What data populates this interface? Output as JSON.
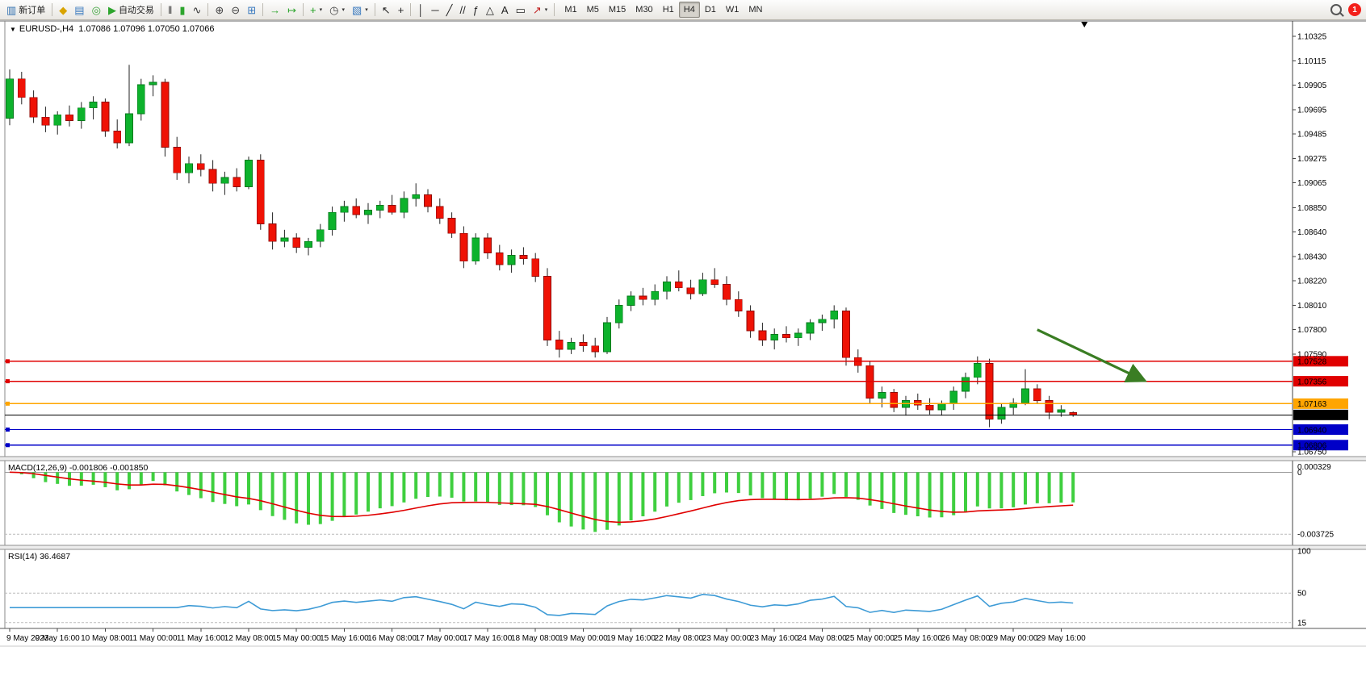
{
  "toolbar": {
    "notification_count": "1",
    "active_timeframe": "H4",
    "timeframes": [
      "M1",
      "M5",
      "M15",
      "M30",
      "H1",
      "H4",
      "D1",
      "W1",
      "MN"
    ],
    "items": [
      {
        "name": "new-order-button",
        "icon": "new-order-icon",
        "label": "新订单"
      },
      {
        "type": "sep"
      },
      {
        "name": "market-watch-button",
        "icon": "market-watch-icon"
      },
      {
        "name": "data-window-button",
        "icon": "data-window-icon"
      },
      {
        "name": "navigator-button",
        "icon": "navigator-icon"
      },
      {
        "name": "auto-trading-button",
        "icon": "play-icon",
        "label": "自动交易"
      },
      {
        "type": "sep"
      },
      {
        "name": "bar-chart-button",
        "icon": "bar-chart-icon"
      },
      {
        "name": "candlestick-chart-button",
        "icon": "candlestick-icon"
      },
      {
        "name": "line-chart-button",
        "icon": "line-chart-icon"
      },
      {
        "type": "sep"
      },
      {
        "name": "zoom-in-button",
        "icon": "zoom-in-icon"
      },
      {
        "name": "zoom-out-button",
        "icon": "zoom-out-icon"
      },
      {
        "name": "tile-windows-button",
        "icon": "tile-windows-icon"
      },
      {
        "type": "sep"
      },
      {
        "name": "auto-scroll-button",
        "icon": "auto-scroll-icon"
      },
      {
        "name": "chart-shift-button",
        "icon": "chart-shift-icon"
      },
      {
        "type": "sep"
      },
      {
        "name": "indicators-button",
        "icon": "indicators-plus-icon",
        "dropdown": true
      },
      {
        "name": "periods-button",
        "icon": "clock-icon",
        "dropdown": true
      },
      {
        "name": "templates-button",
        "icon": "template-icon",
        "dropdown": true
      },
      {
        "type": "sep"
      },
      {
        "name": "cursor-button",
        "icon": "cursor-icon"
      },
      {
        "name": "crosshair-button",
        "icon": "crosshair-icon"
      },
      {
        "type": "sep"
      },
      {
        "name": "vertical-line-button",
        "icon": "vline-icon"
      },
      {
        "name": "horizontal-line-button",
        "icon": "hline-icon"
      },
      {
        "name": "trendline-button",
        "icon": "trendline-icon"
      },
      {
        "name": "equidistant-channel-button",
        "icon": "channel-icon"
      },
      {
        "name": "fibonacci-button",
        "icon": "fibonacci-icon"
      },
      {
        "name": "shapes-button",
        "icon": "shapes-icon"
      },
      {
        "name": "text-button",
        "icon": "text-icon"
      },
      {
        "name": "text-label-button",
        "icon": "text-label-icon"
      },
      {
        "name": "arrows-button",
        "icon": "arrow-icon",
        "dropdown": true
      },
      {
        "type": "sep"
      }
    ]
  },
  "chart": {
    "header": {
      "symbol": "EURUSD-,H4",
      "ohlc": "1.07086 1.07096 1.07050 1.07066"
    }
  },
  "indicators": {
    "macd": {
      "header": "MACD(12,26,9) -0.001806 -0.001850"
    },
    "rsi": {
      "header": "RSI(14) 36.4687"
    }
  },
  "chart_data": {
    "type": "candlestick",
    "symbol": "EURUSD-",
    "timeframe": "H4",
    "start": "2023-05-09 00:00",
    "interval_hours": 4,
    "current_ohlc": {
      "open": 1.07086,
      "high": 1.07096,
      "low": 1.0705,
      "close": 1.07066
    },
    "ylim": [
      1.06735,
      1.1043
    ],
    "price_axis_ticks": [
      1.10325,
      1.10115,
      1.09905,
      1.09695,
      1.09485,
      1.09275,
      1.09065,
      1.0885,
      1.0864,
      1.0843,
      1.0822,
      1.0801,
      1.078,
      1.0759,
      1.0675
    ],
    "candles": [
      [
        1.0962,
        1.1004,
        1.0956,
        1.0996
      ],
      [
        1.0996,
        1.1002,
        1.0974,
        1.098
      ],
      [
        1.098,
        1.0986,
        1.0958,
        1.0963
      ],
      [
        1.0963,
        1.0972,
        1.095,
        1.0956
      ],
      [
        1.0956,
        1.0968,
        1.0948,
        1.0965
      ],
      [
        1.0965,
        1.0973,
        1.0955,
        1.096
      ],
      [
        1.096,
        1.0976,
        1.0953,
        1.0971
      ],
      [
        1.0971,
        1.0981,
        1.0961,
        1.0976
      ],
      [
        1.0976,
        1.0979,
        1.0946,
        1.0951
      ],
      [
        1.0951,
        1.0961,
        1.0936,
        1.0941
      ],
      [
        1.0941,
        1.1008,
        1.0938,
        1.0966
      ],
      [
        1.0966,
        1.0996,
        1.096,
        1.0991
      ],
      [
        1.0991,
        1.0999,
        1.0981,
        1.0993
      ],
      [
        1.0993,
        1.0996,
        1.0929,
        1.0937
      ],
      [
        1.0937,
        1.0946,
        1.0909,
        1.0915
      ],
      [
        1.0915,
        1.0929,
        1.0906,
        1.0923
      ],
      [
        1.0923,
        1.0931,
        1.0912,
        1.0918
      ],
      [
        1.0918,
        1.0926,
        1.0899,
        1.0906
      ],
      [
        1.0906,
        1.0916,
        1.0896,
        1.0911
      ],
      [
        1.0911,
        1.0919,
        1.0899,
        1.0903
      ],
      [
        1.0903,
        1.0929,
        1.0901,
        1.0926
      ],
      [
        1.0926,
        1.0931,
        1.0866,
        1.0871
      ],
      [
        1.0871,
        1.0881,
        1.0849,
        1.0856
      ],
      [
        1.0856,
        1.0866,
        1.0851,
        1.0859
      ],
      [
        1.0859,
        1.0863,
        1.0846,
        1.0851
      ],
      [
        1.0851,
        1.0859,
        1.0844,
        1.0856
      ],
      [
        1.0856,
        1.0871,
        1.0851,
        1.0866
      ],
      [
        1.0866,
        1.0886,
        1.0861,
        1.0881
      ],
      [
        1.0881,
        1.0891,
        1.0873,
        1.0886
      ],
      [
        1.0886,
        1.0893,
        1.0876,
        1.0879
      ],
      [
        1.0879,
        1.0889,
        1.0871,
        1.0883
      ],
      [
        1.0883,
        1.0891,
        1.0876,
        1.0887
      ],
      [
        1.0887,
        1.0896,
        1.0879,
        1.0881
      ],
      [
        1.0881,
        1.0899,
        1.0876,
        1.0893
      ],
      [
        1.0893,
        1.0906,
        1.0886,
        1.0896
      ],
      [
        1.0896,
        1.0901,
        1.0881,
        1.0886
      ],
      [
        1.0886,
        1.0893,
        1.0871,
        1.0876
      ],
      [
        1.0876,
        1.0881,
        1.0859,
        1.0863
      ],
      [
        1.0863,
        1.0869,
        1.0833,
        1.0839
      ],
      [
        1.0839,
        1.0863,
        1.0836,
        1.0859
      ],
      [
        1.0859,
        1.0863,
        1.0841,
        1.0846
      ],
      [
        1.0846,
        1.0853,
        1.0831,
        1.0836
      ],
      [
        1.0836,
        1.0849,
        1.0829,
        1.0844
      ],
      [
        1.0844,
        1.0851,
        1.0836,
        1.0841
      ],
      [
        1.0841,
        1.0846,
        1.0821,
        1.0826
      ],
      [
        1.0826,
        1.0833,
        1.0766,
        1.0771
      ],
      [
        1.0771,
        1.0779,
        1.0756,
        1.0763
      ],
      [
        1.0763,
        1.0773,
        1.0759,
        1.0769
      ],
      [
        1.0769,
        1.0776,
        1.0761,
        1.0766
      ],
      [
        1.0766,
        1.0773,
        1.0756,
        1.0761
      ],
      [
        1.0761,
        1.0791,
        1.0759,
        1.0786
      ],
      [
        1.0786,
        1.0806,
        1.0781,
        1.0801
      ],
      [
        1.0801,
        1.0813,
        1.0796,
        1.0809
      ],
      [
        1.0809,
        1.0816,
        1.0801,
        1.0806
      ],
      [
        1.0806,
        1.0819,
        1.0801,
        1.0813
      ],
      [
        1.0813,
        1.0826,
        1.0806,
        1.0821
      ],
      [
        1.0821,
        1.0831,
        1.0813,
        1.0816
      ],
      [
        1.0816,
        1.0823,
        1.0806,
        1.0811
      ],
      [
        1.0811,
        1.0829,
        1.0809,
        1.0823
      ],
      [
        1.0823,
        1.0833,
        1.0816,
        1.0819
      ],
      [
        1.0819,
        1.0826,
        1.0801,
        1.0806
      ],
      [
        1.0806,
        1.0813,
        1.0791,
        1.0796
      ],
      [
        1.0796,
        1.0801,
        1.0773,
        1.0779
      ],
      [
        1.0779,
        1.0786,
        1.0766,
        1.0771
      ],
      [
        1.0771,
        1.0781,
        1.0763,
        1.0776
      ],
      [
        1.0776,
        1.0783,
        1.0769,
        1.0773
      ],
      [
        1.0773,
        1.0781,
        1.0766,
        1.0777
      ],
      [
        1.0777,
        1.0789,
        1.0771,
        1.0786
      ],
      [
        1.0786,
        1.0793,
        1.0779,
        1.0789
      ],
      [
        1.0789,
        1.0801,
        1.0781,
        1.0796
      ],
      [
        1.0796,
        1.0799,
        1.0749,
        1.0756
      ],
      [
        1.0756,
        1.0763,
        1.0743,
        1.0749
      ],
      [
        1.0749,
        1.0753,
        1.0716,
        1.0721
      ],
      [
        1.0721,
        1.0731,
        1.0713,
        1.0726
      ],
      [
        1.0726,
        1.0729,
        1.0709,
        1.0713
      ],
      [
        1.0713,
        1.0723,
        1.0706,
        1.0719
      ],
      [
        1.0719,
        1.0725,
        1.0711,
        1.0715
      ],
      [
        1.0715,
        1.0721,
        1.0707,
        1.0711
      ],
      [
        1.0711,
        1.0719,
        1.0706,
        1.0716
      ],
      [
        1.0716,
        1.0731,
        1.0711,
        1.0727
      ],
      [
        1.0727,
        1.0743,
        1.0721,
        1.0739
      ],
      [
        1.0739,
        1.0757,
        1.0733,
        1.0751
      ],
      [
        1.0751,
        1.0755,
        1.0696,
        1.0703
      ],
      [
        1.0703,
        1.0716,
        1.0699,
        1.0713
      ],
      [
        1.0713,
        1.0721,
        1.0707,
        1.0717
      ],
      [
        1.0717,
        1.0746,
        1.0715,
        1.0729
      ],
      [
        1.0729,
        1.0733,
        1.0716,
        1.0719
      ],
      [
        1.0719,
        1.0723,
        1.0703,
        1.0709
      ],
      [
        1.0709,
        1.0715,
        1.0705,
        1.0711
      ],
      [
        1.07086,
        1.07096,
        1.0705,
        1.07066
      ]
    ],
    "levels": [
      {
        "name": "resistance-line-1",
        "price": 1.07528,
        "label": "1.07528",
        "color": "#e00000"
      },
      {
        "name": "resistance-line-2",
        "price": 1.07356,
        "label": "1.07356",
        "color": "#e00000"
      },
      {
        "name": "pivot-line",
        "price": 1.07163,
        "label": "1.07163",
        "color": "#ffa500"
      },
      {
        "name": "current-price-line",
        "price": 1.07066,
        "label": "1.07066",
        "color": "#000000"
      },
      {
        "name": "support-line-1",
        "price": 1.0694,
        "label": "1.06940",
        "color": "#0000c8"
      },
      {
        "name": "support-line-2",
        "price": 1.06806,
        "label": "1.06806",
        "color": "#0000c8"
      }
    ],
    "annotation_arrow": {
      "x1_index": 86,
      "y1_price": 1.078,
      "x2_index": 95,
      "y2_price": 1.0736,
      "color": "#3a7d23"
    },
    "macd": {
      "fast": 12,
      "slow": 26,
      "signal": 9,
      "current_macd": -0.001806,
      "current_signal": -0.00185,
      "ylim": [
        -0.0042,
        0.0005
      ],
      "axis_ticks": [
        {
          "v": 0.000329,
          "label": "0.000329"
        },
        {
          "v": 0,
          "label": "0"
        },
        {
          "v": -0.003725,
          "label": "-0.003725"
        }
      ]
    },
    "rsi": {
      "period": 14,
      "current": 36.4687,
      "ylim": [
        10,
        100
      ],
      "axis_ticks": [
        {
          "v": 100,
          "label": "100"
        },
        {
          "v": 50,
          "label": "50"
        },
        {
          "v": 15,
          "label": "15"
        }
      ]
    },
    "time_labels": [
      "9 May 2023",
      "9 May 16:00",
      "10 May 08:00",
      "11 May 00:00",
      "11 May 16:00",
      "12 May 08:00",
      "15 May 00:00",
      "15 May 16:00",
      "16 May 08:00",
      "17 May 00:00",
      "17 May 16:00",
      "18 May 08:00",
      "19 May 00:00",
      "19 May 16:00",
      "22 May 08:00",
      "23 May 00:00",
      "23 May 16:00",
      "24 May 08:00",
      "25 May 00:00",
      "25 May 16:00",
      "26 May 08:00",
      "29 May 00:00",
      "29 May 16:00"
    ],
    "label_every_n_candles": 4,
    "colors": {
      "up": "#0db22c",
      "up_stroke": "#077a1c",
      "down": "#ef1205",
      "down_stroke": "#8f0b05",
      "wick": "#222222",
      "macd_histogram": "#3fcf3f",
      "macd_signal": "#e00000",
      "rsi": "#3e9bd6"
    }
  }
}
